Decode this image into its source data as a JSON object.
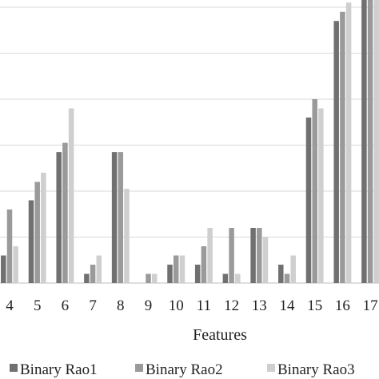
{
  "chart_data": {
    "type": "bar",
    "xlabel": "Features",
    "ylabel": "",
    "title": "",
    "categories": [
      "4",
      "5",
      "6",
      "7",
      "8",
      "9",
      "10",
      "11",
      "12",
      "13",
      "14",
      "15",
      "16",
      "17"
    ],
    "ylim": [
      0,
      6
    ],
    "grid": true,
    "legend_position": "bottom",
    "series": [
      {
        "name": "Binary Rao1",
        "color": "#707070",
        "values": [
          0.6,
          1.8,
          2.85,
          0.2,
          2.85,
          0,
          0.4,
          0.4,
          0.2,
          1.2,
          0.4,
          3.6,
          5.7,
          6.3
        ]
      },
      {
        "name": "Binary Rao2",
        "color": "#9a9a9a",
        "values": [
          1.6,
          2.2,
          3.05,
          0.4,
          2.85,
          0.2,
          0.6,
          0.8,
          1.2,
          1.2,
          0.2,
          4.0,
          5.9,
          6.3
        ]
      },
      {
        "name": "Binary Rao3",
        "color": "#cfcfcf",
        "values": [
          0.8,
          2.4,
          3.8,
          0.6,
          2.05,
          0.2,
          0.6,
          1.2,
          0.2,
          1.0,
          0.6,
          3.8,
          6.1,
          6.3
        ]
      }
    ]
  }
}
